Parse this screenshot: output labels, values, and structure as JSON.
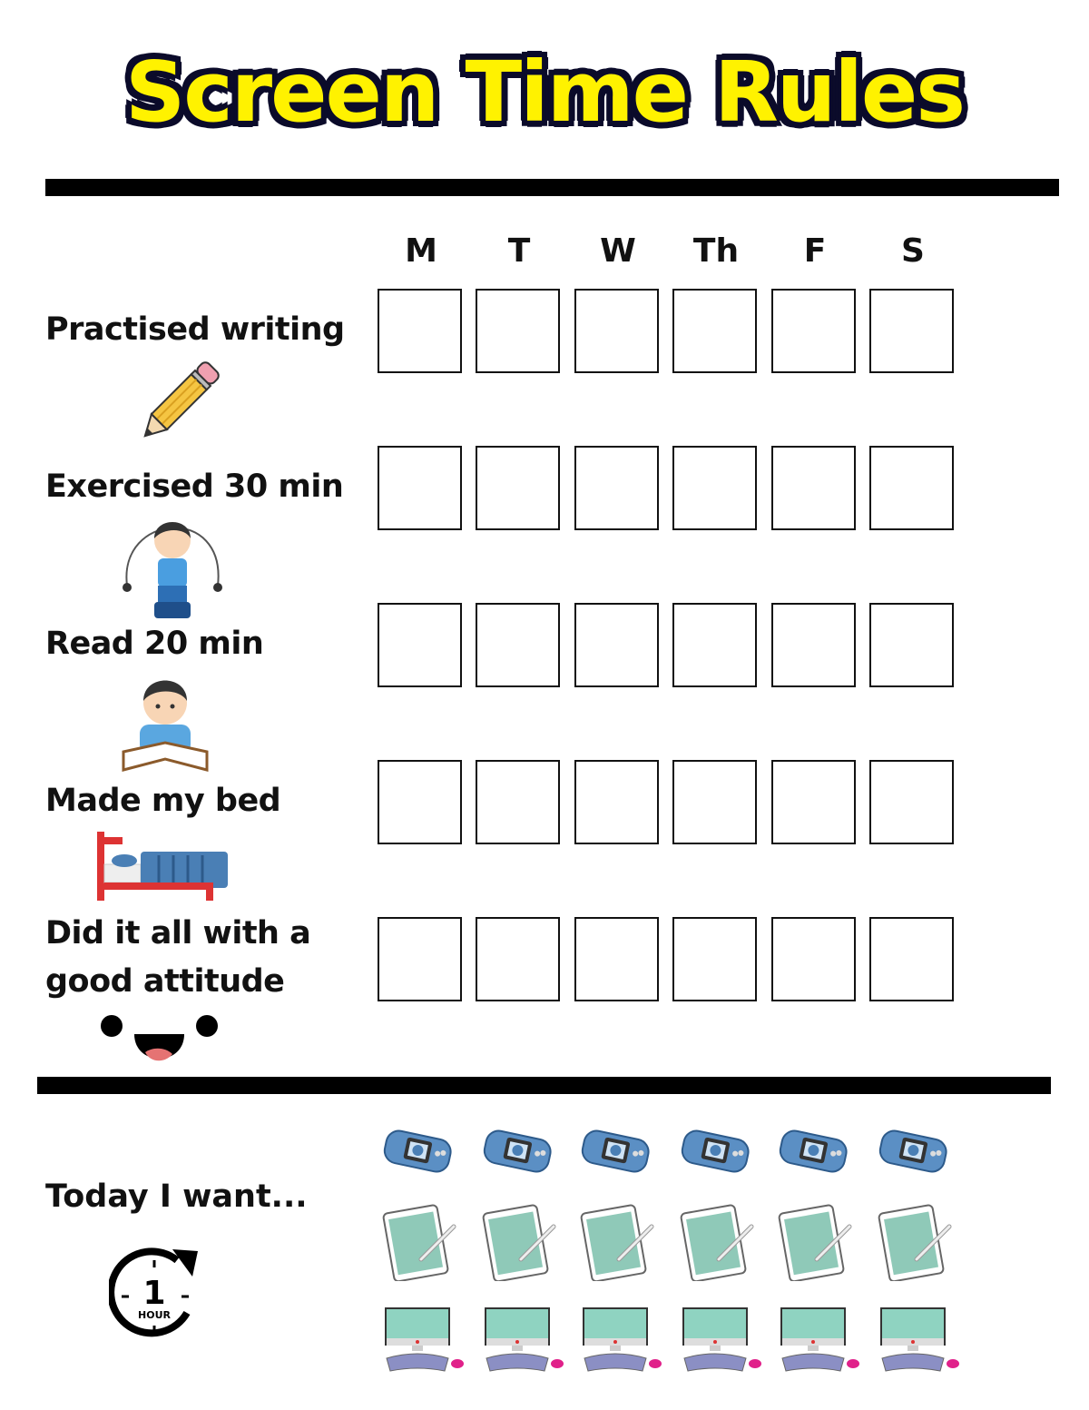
{
  "title": "Screen Time Rules",
  "days": [
    "M",
    "T",
    "W",
    "Th",
    "F",
    "S"
  ],
  "tasks": [
    {
      "label": "Practised writing",
      "icon": "pencil-icon"
    },
    {
      "label": "Exercised 30 min",
      "icon": "jump-rope-kid-icon"
    },
    {
      "label": "Read 20 min",
      "icon": "reading-kid-icon"
    },
    {
      "label": "Made my bed",
      "icon": "bed-icon"
    },
    {
      "label_line1": "Did it all with a",
      "label_line2": "good attitude",
      "icon": "happy-face-icon"
    }
  ],
  "reward": {
    "label": "Today I want...",
    "clock": {
      "number": "1",
      "unit": "HOUR",
      "icon": "one-hour-clock-icon"
    },
    "options": [
      "handheld-game-console-icon",
      "tablet-with-stylus-icon",
      "desktop-computer-icon"
    ]
  },
  "colors": {
    "title_fill": "#fff200",
    "title_outline": "#0b0b2a",
    "device_blue": "#5b8fc4",
    "screen_teal": "#8fd3c1"
  }
}
